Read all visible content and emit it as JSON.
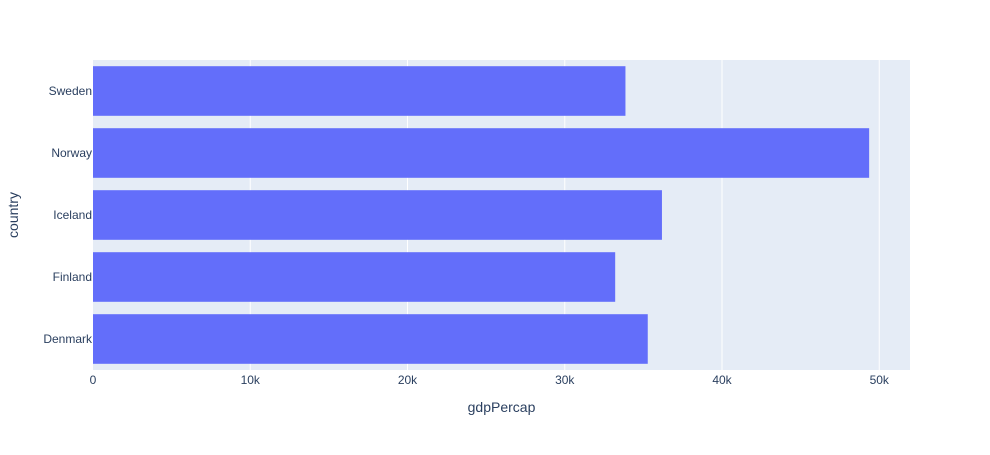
{
  "chart_data": {
    "type": "bar",
    "orientation": "horizontal",
    "categories": [
      "Denmark",
      "Finland",
      "Iceland",
      "Norway",
      "Sweden"
    ],
    "values": [
      35278,
      33207,
      36181,
      49357,
      33860
    ],
    "xlabel": "gdpPercap",
    "ylabel": "country",
    "xlim": [
      0,
      51955
    ],
    "xticks": [
      0,
      10000,
      20000,
      30000,
      40000,
      50000
    ],
    "xtick_labels": [
      "0",
      "10k",
      "20k",
      "30k",
      "40k",
      "50k"
    ],
    "grid": "vertical",
    "colors": {
      "bar": "#636efa",
      "plot_bg": "#e5ecf6",
      "grid": "#ffffff",
      "text": "#2a3f5f"
    }
  }
}
